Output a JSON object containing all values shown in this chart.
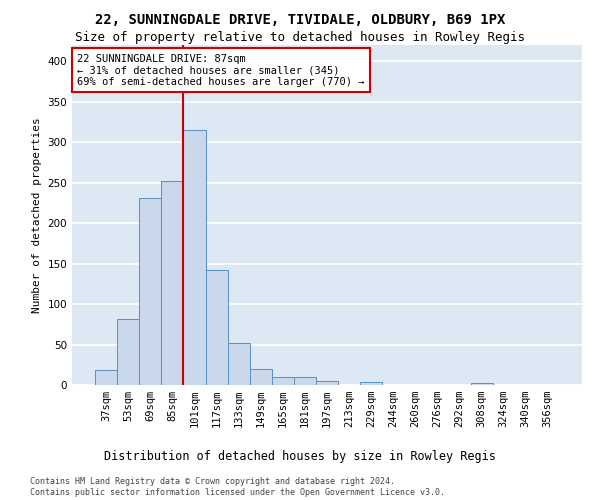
{
  "title1": "22, SUNNINGDALE DRIVE, TIVIDALE, OLDBURY, B69 1PX",
  "title2": "Size of property relative to detached houses in Rowley Regis",
  "xlabel": "Distribution of detached houses by size in Rowley Regis",
  "ylabel": "Number of detached properties",
  "footnote": "Contains HM Land Registry data © Crown copyright and database right 2024.\nContains public sector information licensed under the Open Government Licence v3.0.",
  "categories": [
    "37sqm",
    "53sqm",
    "69sqm",
    "85sqm",
    "101sqm",
    "117sqm",
    "133sqm",
    "149sqm",
    "165sqm",
    "181sqm",
    "197sqm",
    "213sqm",
    "229sqm",
    "244sqm",
    "260sqm",
    "276sqm",
    "292sqm",
    "308sqm",
    "324sqm",
    "340sqm",
    "356sqm"
  ],
  "values": [
    18,
    82,
    231,
    252,
    315,
    142,
    52,
    20,
    10,
    10,
    5,
    0,
    4,
    0,
    0,
    0,
    0,
    3,
    0,
    0,
    0
  ],
  "bar_color": "#c9d9eb",
  "bar_edge_color": "#5a8fc2",
  "annotation_line1": "22 SUNNINGDALE DRIVE: 87sqm",
  "annotation_line2": "← 31% of detached houses are smaller (345)",
  "annotation_line3": "69% of semi-detached houses are larger (770) →",
  "annotation_box_color": "#ffffff",
  "annotation_box_edge": "#cc0000",
  "vline_color": "#cc0000",
  "vline_x": 3.5,
  "ylim": [
    0,
    420
  ],
  "yticks": [
    0,
    50,
    100,
    150,
    200,
    250,
    300,
    350,
    400
  ],
  "bg_color": "#dde8f5",
  "grid_color": "#ffffff",
  "title1_fontsize": 10,
  "title2_fontsize": 9,
  "xlabel_fontsize": 8.5,
  "ylabel_fontsize": 8,
  "tick_fontsize": 7.5,
  "annot_fontsize": 7.5,
  "footnote_fontsize": 6
}
